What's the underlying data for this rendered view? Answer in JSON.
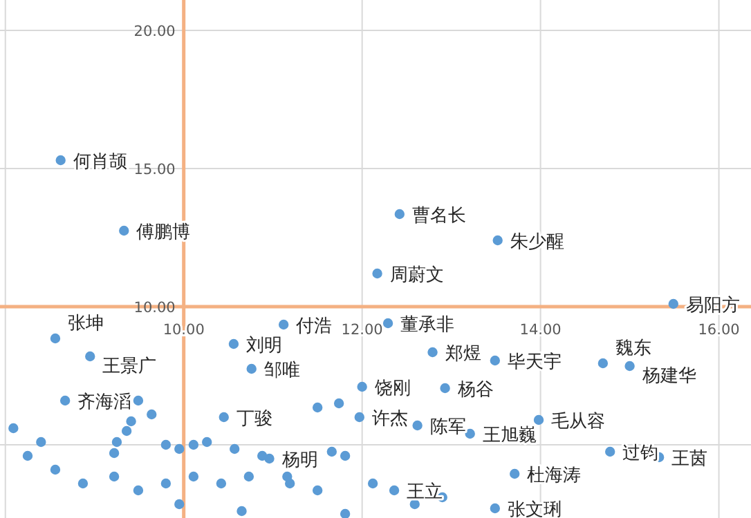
{
  "chart_data": {
    "type": "scatter",
    "marker": "circle",
    "grid": true,
    "xlim": [
      7.94,
      16.36
    ],
    "ylim": [
      2.35,
      21.1
    ],
    "xticks": [
      {
        "value": 8,
        "label": null
      },
      {
        "value": 10,
        "label": "10.00"
      },
      {
        "value": 12,
        "label": "12.00"
      },
      {
        "value": 14,
        "label": "14.00"
      },
      {
        "value": 16,
        "label": "16.00"
      }
    ],
    "yticks": [
      {
        "value": 5,
        "label": null
      },
      {
        "value": 10,
        "label": "10.00"
      },
      {
        "value": 15,
        "label": "15.00"
      },
      {
        "value": 20,
        "label": "20.00"
      }
    ],
    "series": [
      {
        "color": "#5b9bd5",
        "x": [
          8.62,
          9.33,
          12.42,
          13.52,
          12.17,
          15.49,
          12.29,
          11.12,
          10.56,
          10.76,
          10.45,
          12.79,
          13.49,
          14.7,
          15.0,
          12.0,
          12.93,
          11.97,
          12.62,
          13.21,
          13.98,
          14.78,
          15.33,
          13.71,
          13.49,
          8.67,
          8.56,
          8.95,
          10.96,
          12.36,
          9.49,
          9.64,
          9.41,
          9.36,
          9.25,
          9.22,
          9.8,
          9.95,
          10.11,
          10.26,
          10.57,
          10.88,
          11.66,
          11.81,
          11.19,
          11.5,
          10.73,
          10.42,
          10.11,
          9.8,
          9.49,
          9.22,
          8.87,
          8.56,
          8.25,
          8.09,
          8.4,
          11.5,
          11.74,
          11.16,
          12.12,
          12.59,
          12.9,
          11.81,
          10.65,
          9.95
        ],
        "values": [
          15.3,
          12.75,
          13.35,
          12.4,
          11.2,
          10.1,
          9.4,
          9.35,
          8.65,
          7.75,
          6.0,
          8.35,
          8.05,
          7.95,
          7.85,
          7.1,
          7.05,
          6.0,
          5.7,
          5.4,
          5.9,
          4.75,
          4.55,
          3.95,
          2.7,
          6.6,
          8.85,
          8.2,
          4.5,
          3.35,
          6.6,
          6.1,
          5.85,
          5.5,
          5.1,
          4.7,
          5.0,
          4.85,
          5.0,
          5.1,
          4.85,
          4.6,
          4.75,
          4.6,
          3.6,
          3.35,
          3.85,
          3.6,
          3.85,
          3.6,
          3.35,
          3.85,
          3.6,
          4.1,
          4.6,
          5.6,
          5.1,
          6.35,
          6.5,
          3.85,
          3.6,
          2.85,
          3.1,
          2.5,
          2.6,
          2.85
        ]
      }
    ],
    "annotations": [
      {
        "text": "何肖颉",
        "x": 8.62,
        "y": 15.3
      },
      {
        "text": "傅鹏博",
        "x": 9.33,
        "y": 12.75
      },
      {
        "text": "曹名长",
        "x": 12.42,
        "y": 13.35
      },
      {
        "text": "朱少醒",
        "x": 13.52,
        "y": 12.4
      },
      {
        "text": "周蔚文",
        "x": 12.17,
        "y": 11.2
      },
      {
        "text": "易阳方",
        "x": 15.49,
        "y": 10.1
      },
      {
        "text": "董承非",
        "x": 12.29,
        "y": 9.4
      },
      {
        "text": "付浩",
        "x": 11.12,
        "y": 9.35
      },
      {
        "text": "刘明",
        "x": 10.56,
        "y": 8.65
      },
      {
        "text": "邹唯",
        "x": 10.76,
        "y": 7.75
      },
      {
        "text": "丁骏",
        "x": 10.45,
        "y": 6.0
      },
      {
        "text": "郑煜",
        "x": 12.79,
        "y": 8.35
      },
      {
        "text": "毕天宇",
        "x": 13.49,
        "y": 8.05
      },
      {
        "text": "魏东",
        "x": 14.7,
        "y": 7.95
      },
      {
        "text": "杨建华",
        "x": 15.0,
        "y": 7.85
      },
      {
        "text": "饶刚",
        "x": 12.0,
        "y": 7.1
      },
      {
        "text": "杨谷",
        "x": 12.93,
        "y": 7.05
      },
      {
        "text": "许杰",
        "x": 11.97,
        "y": 6.0
      },
      {
        "text": "陈军",
        "x": 12.62,
        "y": 5.7
      },
      {
        "text": "王旭巍",
        "x": 13.21,
        "y": 5.4
      },
      {
        "text": "毛从容",
        "x": 13.98,
        "y": 5.9
      },
      {
        "text": "过钧",
        "x": 14.78,
        "y": 4.75
      },
      {
        "text": "王茵",
        "x": 15.33,
        "y": 4.55
      },
      {
        "text": "杜海涛",
        "x": 13.71,
        "y": 3.95
      },
      {
        "text": "张文琍",
        "x": 13.49,
        "y": 2.7
      },
      {
        "text": "齐海滔",
        "x": 8.67,
        "y": 6.6
      },
      {
        "text": "张坤",
        "x": 8.56,
        "y": 8.85
      },
      {
        "text": "王景广",
        "x": 8.95,
        "y": 8.2
      },
      {
        "text": "杨明",
        "x": 10.96,
        "y": 4.5
      },
      {
        "text": "王立",
        "x": 12.36,
        "y": 3.35
      }
    ]
  }
}
